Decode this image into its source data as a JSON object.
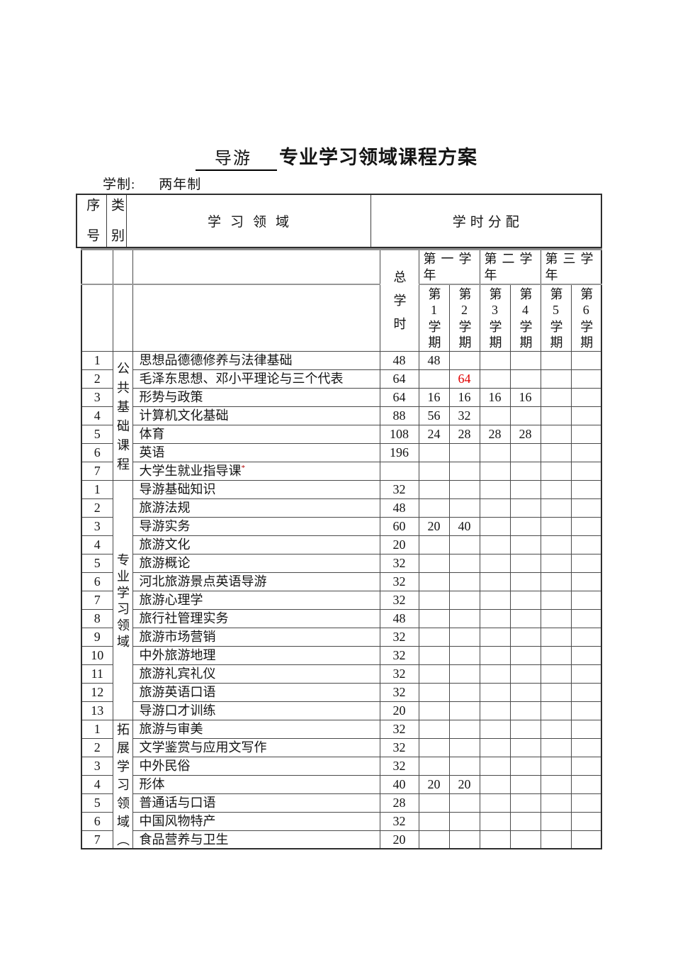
{
  "doc": {
    "major": "导游",
    "title": "专业学习领域课程方案",
    "schooling_label": "学制:",
    "schooling_value": "两年制"
  },
  "colors": {
    "highlight_red": "#e00000",
    "mark_red": "#b00000"
  },
  "table": {
    "head": {
      "seq": "序号",
      "category": "类别",
      "domain": "学习领域",
      "allocation": "学时分配",
      "total": "总学时",
      "years": [
        "第一学年",
        "第二学年",
        "第三学年"
      ],
      "semesters": [
        "第1学期",
        "第2学期",
        "第3学期",
        "第4学期",
        "第5学期",
        "第6学期"
      ]
    },
    "groups": [
      {
        "category": "公共基础课程",
        "rows": [
          {
            "no": "1",
            "name": "思想品德德修养与法律基础",
            "total": "48",
            "sems": [
              "48",
              "",
              "",
              "",
              "",
              ""
            ]
          },
          {
            "no": "2",
            "name": "毛泽东思想、邓小平理论与三个代表",
            "total": "64",
            "sems": [
              "",
              "64",
              "",
              "",
              "",
              ""
            ],
            "red": [
              1
            ]
          },
          {
            "no": "3",
            "name": "形势与政策",
            "total": "64",
            "sems": [
              "16",
              "16",
              "16",
              "16",
              "",
              ""
            ]
          },
          {
            "no": "4",
            "name": "计算机文化基础",
            "total": "88",
            "sems": [
              "56",
              "32",
              "",
              "",
              "",
              ""
            ]
          },
          {
            "no": "5",
            "name": "体育",
            "total": "108",
            "sems": [
              "24",
              "28",
              "28",
              "28",
              "",
              ""
            ]
          },
          {
            "no": "6",
            "name": "英语",
            "total": "196",
            "sems": [
              "",
              "",
              "",
              "",
              "",
              ""
            ]
          },
          {
            "no": "7",
            "name": "大学生就业指导课",
            "mark": "*",
            "total": "",
            "sems": [
              "",
              "",
              "",
              "",
              "",
              ""
            ]
          }
        ]
      },
      {
        "category": "专业学习领域",
        "rows": [
          {
            "no": "1",
            "name": "导游基础知识",
            "total": "32",
            "sems": [
              "",
              "",
              "",
              "",
              "",
              ""
            ]
          },
          {
            "no": "2",
            "name": "旅游法规",
            "total": "48",
            "sems": [
              "",
              "",
              "",
              "",
              "",
              ""
            ]
          },
          {
            "no": "3",
            "name": "导游实务",
            "total": "60",
            "sems": [
              "20",
              "40",
              "",
              "",
              "",
              ""
            ]
          },
          {
            "no": "4",
            "name": "旅游文化",
            "total": "20",
            "sems": [
              "",
              "",
              "",
              "",
              "",
              ""
            ]
          },
          {
            "no": "5",
            "name": "旅游概论",
            "total": "32",
            "sems": [
              "",
              "",
              "",
              "",
              "",
              ""
            ]
          },
          {
            "no": "6",
            "name": "河北旅游景点英语导游",
            "total": "32",
            "sems": [
              "",
              "",
              "",
              "",
              "",
              ""
            ]
          },
          {
            "no": "7",
            "name": "旅游心理学",
            "total": "32",
            "sems": [
              "",
              "",
              "",
              "",
              "",
              ""
            ]
          },
          {
            "no": "8",
            "name": "旅行社管理实务",
            "total": "48",
            "sems": [
              "",
              "",
              "",
              "",
              "",
              ""
            ]
          },
          {
            "no": "9",
            "name": "旅游市场营销",
            "total": "32",
            "sems": [
              "",
              "",
              "",
              "",
              "",
              ""
            ]
          },
          {
            "no": "10",
            "name": "中外旅游地理",
            "total": "32",
            "sems": [
              "",
              "",
              "",
              "",
              "",
              ""
            ]
          },
          {
            "no": "11",
            "name": "旅游礼宾礼仪",
            "total": "32",
            "sems": [
              "",
              "",
              "",
              "",
              "",
              ""
            ]
          },
          {
            "no": "12",
            "name": "旅游英语口语",
            "total": "32",
            "sems": [
              "",
              "",
              "",
              "",
              "",
              ""
            ]
          },
          {
            "no": "13",
            "name": "导游口才训练",
            "total": "20",
            "sems": [
              "",
              "",
              "",
              "",
              "",
              ""
            ]
          }
        ]
      },
      {
        "category": "拓展学习领域（",
        "rows": [
          {
            "no": "1",
            "name": "旅游与审美",
            "total": "32",
            "sems": [
              "",
              "",
              "",
              "",
              "",
              ""
            ]
          },
          {
            "no": "2",
            "name": "文学鉴赏与应用文写作",
            "total": "32",
            "sems": [
              "",
              "",
              "",
              "",
              "",
              ""
            ]
          },
          {
            "no": "3",
            "name": "中外民俗",
            "total": "32",
            "sems": [
              "",
              "",
              "",
              "",
              "",
              ""
            ]
          },
          {
            "no": "4",
            "name": "形体",
            "total": "40",
            "sems": [
              "20",
              "20",
              "",
              "",
              "",
              ""
            ]
          },
          {
            "no": "5",
            "name": "普通话与口语",
            "total": "28",
            "sems": [
              "",
              "",
              "",
              "",
              "",
              ""
            ]
          },
          {
            "no": "6",
            "name": "中国风物特产",
            "total": "32",
            "sems": [
              "",
              "",
              "",
              "",
              "",
              ""
            ]
          },
          {
            "no": "7",
            "name": "食品营养与卫生",
            "total": "20",
            "sems": [
              "",
              "",
              "",
              "",
              "",
              ""
            ]
          }
        ]
      }
    ]
  }
}
